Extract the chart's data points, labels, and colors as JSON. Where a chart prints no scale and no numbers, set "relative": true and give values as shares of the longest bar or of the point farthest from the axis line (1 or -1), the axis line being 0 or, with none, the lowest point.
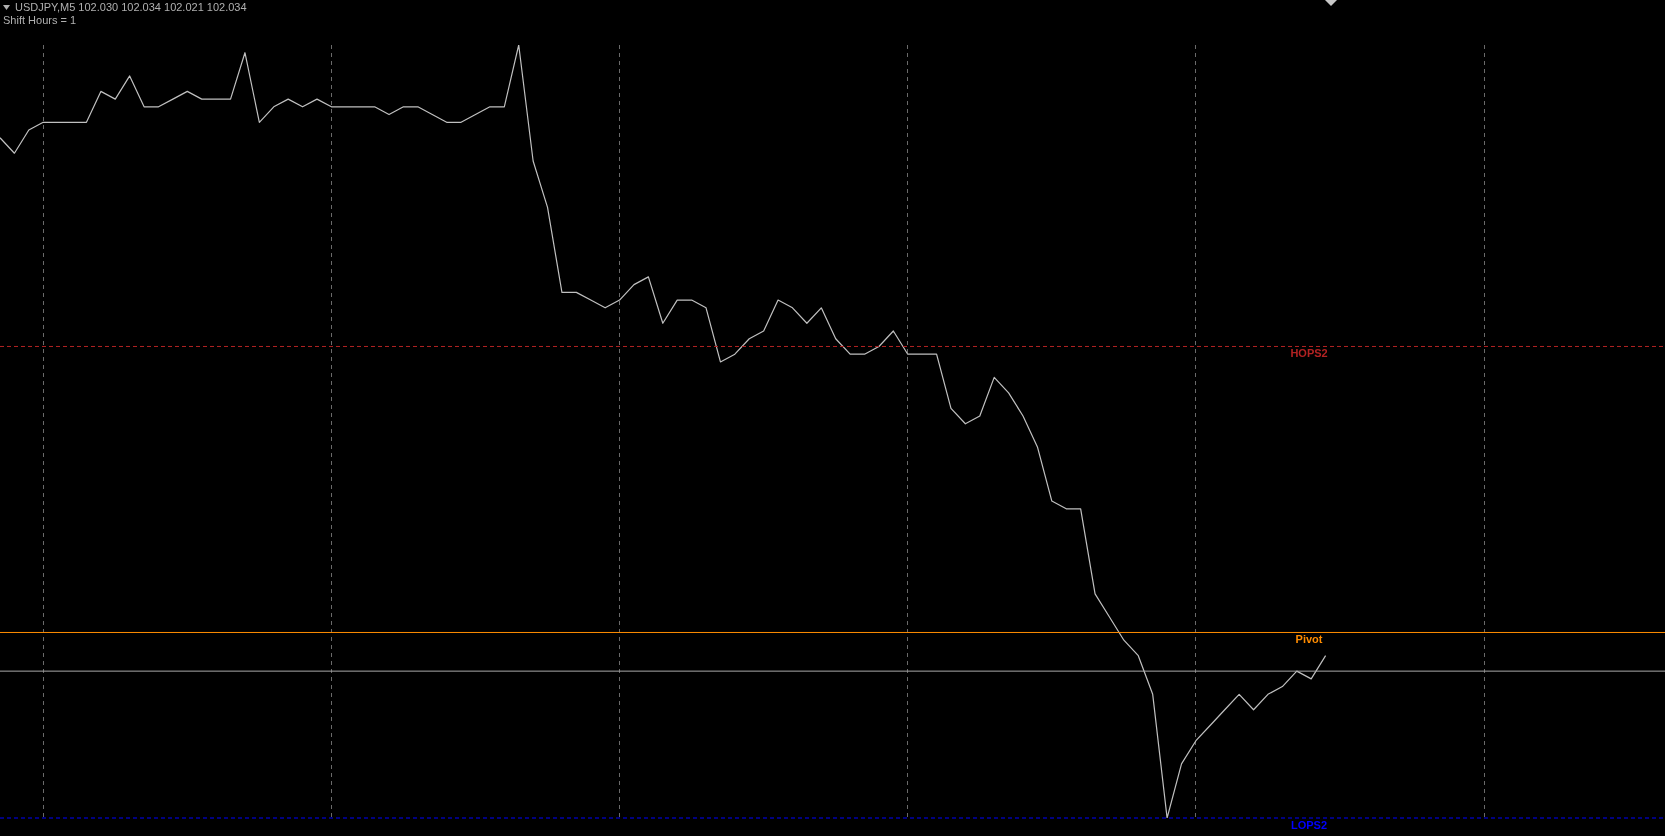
{
  "chart_data": {
    "type": "line",
    "title": "USDJPY,M5  102.030 102.034 102.021 102.034",
    "subtitle": "Shift Hours = 1",
    "relative": true,
    "grid": "x",
    "categories": [
      null,
      null,
      null,
      null,
      null,
      null,
      null,
      null,
      null,
      null,
      null,
      null,
      null,
      null,
      null,
      null,
      null,
      null,
      null,
      null,
      null,
      null,
      null,
      null,
      null,
      null,
      null,
      null,
      null,
      null,
      null,
      null,
      null,
      null,
      null,
      null,
      null,
      null,
      null,
      null,
      null,
      null,
      null,
      null,
      null,
      null,
      null,
      null,
      null,
      null,
      null,
      null,
      null,
      null,
      null,
      null,
      null,
      null,
      null,
      null,
      null,
      null,
      null,
      null,
      null,
      null,
      null,
      null,
      null,
      null,
      null,
      null,
      null,
      null,
      null,
      null,
      null,
      null,
      null,
      null,
      null,
      null,
      null,
      null,
      null,
      null,
      null,
      null,
      null,
      null,
      null,
      null,
      null,
      null,
      null,
      null,
      null,
      null,
      null,
      null,
      null,
      null,
      null,
      null,
      null,
      null,
      null,
      null,
      null,
      null,
      null,
      null,
      null,
      null,
      null,
      null
    ],
    "series": [
      {
        "color": "#c0c0c0",
        "values": [
          0.88,
          0.86,
          0.89,
          0.9,
          0.9,
          0.9,
          0.9,
          0.94,
          0.93,
          0.96,
          0.92,
          0.92,
          0.93,
          0.94,
          0.93,
          0.93,
          0.93,
          0.99,
          0.9,
          0.92,
          0.93,
          0.92,
          0.93,
          0.92,
          0.92,
          0.92,
          0.92,
          0.91,
          0.92,
          0.92,
          0.91,
          0.9,
          0.9,
          0.91,
          0.92,
          0.92,
          1,
          0.85,
          0.79,
          0.68,
          0.68,
          0.67,
          0.66,
          0.67,
          0.69,
          0.7,
          0.64,
          0.67,
          0.67,
          0.66,
          0.59,
          0.6,
          0.62,
          0.63,
          0.67,
          0.66,
          0.64,
          0.66,
          0.62,
          0.6,
          0.6,
          0.61,
          0.63,
          0.6,
          0.6,
          0.6,
          0.53,
          0.51,
          0.52,
          0.57,
          0.55,
          0.52,
          0.48,
          0.41,
          0.4,
          0.4,
          0.29,
          0.26,
          0.23,
          0.21,
          0.16,
          0,
          0.07,
          0.1,
          0.12,
          0.14,
          0.16,
          0.14,
          0.16,
          0.17,
          0.19,
          0.18,
          0.21,
          null,
          null,
          null,
          null,
          null,
          null,
          null,
          null,
          null,
          null,
          null,
          null,
          null,
          null,
          null,
          null,
          null,
          null,
          null,
          null,
          null,
          null,
          null
        ]
      }
    ],
    "ref_lines": [
      {
        "axis": "y",
        "value": 0.61,
        "label": "HOPS2",
        "color": "#b22222",
        "line_style": "dashed"
      },
      {
        "axis": "y",
        "value": 0.24,
        "label": "Pivot",
        "color": "#ff8c00",
        "line_style": "solid"
      },
      {
        "axis": "y",
        "value": 0.19,
        "color": "#a9a9a9",
        "line_style": "solid"
      },
      {
        "axis": "y",
        "value": 0,
        "label": "LOPS2",
        "color": "#0000ff",
        "line_style": "dashed"
      }
    ]
  }
}
